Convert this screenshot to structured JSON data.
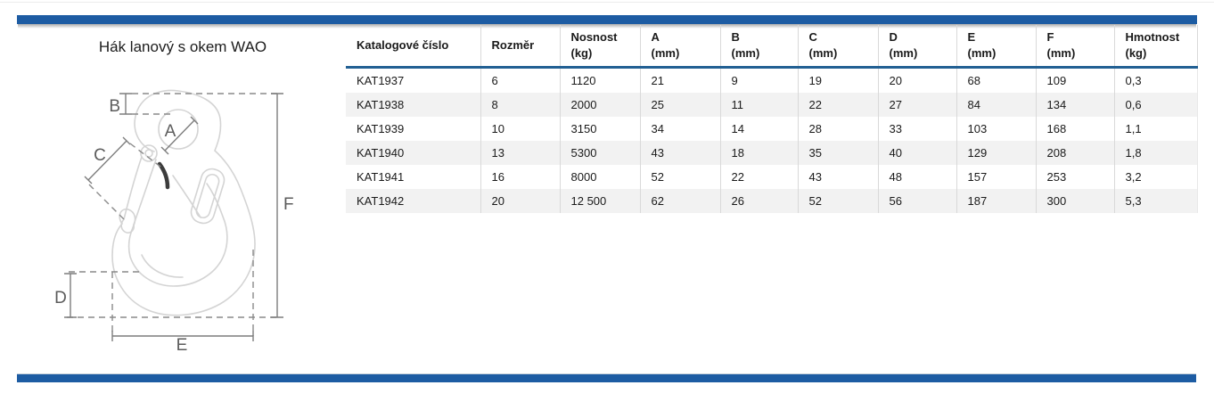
{
  "page": {
    "title": "Hák lanový s okem WAO"
  },
  "diagram": {
    "labels": {
      "A": "A",
      "B": "B",
      "C": "C",
      "D": "D",
      "E": "E",
      "F": "F"
    }
  },
  "table": {
    "headers": [
      "Katalogové číslo",
      "Rozměr",
      "Nosnost\n(kg)",
      "A\n(mm)",
      "B\n(mm)",
      "C\n(mm)",
      "D\n(mm)",
      "E\n(mm)",
      "F\n(mm)",
      "Hmotnost\n(kg)"
    ],
    "rows": [
      [
        "KAT1937",
        "6",
        "1120",
        "21",
        "9",
        "19",
        "20",
        "68",
        "109",
        "0,3"
      ],
      [
        "KAT1938",
        "8",
        "2000",
        "25",
        "11",
        "22",
        "27",
        "84",
        "134",
        "0,6"
      ],
      [
        "KAT1939",
        "10",
        "3150",
        "34",
        "14",
        "28",
        "33",
        "103",
        "168",
        "1,1"
      ],
      [
        "KAT1940",
        "13",
        "5300",
        "43",
        "18",
        "35",
        "40",
        "129",
        "208",
        "1,8"
      ],
      [
        "KAT1941",
        "16",
        "8000",
        "52",
        "22",
        "43",
        "48",
        "157",
        "253",
        "3,2"
      ],
      [
        "KAT1942",
        "20",
        "12 500",
        "62",
        "26",
        "52",
        "56",
        "187",
        "300",
        "5,3"
      ]
    ]
  },
  "colors": {
    "bar_blue": "#1d5ca3",
    "header_rule_blue": "#226093",
    "row_alt_bg": "#f2f2f2",
    "cell_border": "#d9d9d9",
    "drawing_line": "#d4d4d4",
    "dimension_line": "#7d7d7d",
    "label_text": "#5c5c5c"
  }
}
